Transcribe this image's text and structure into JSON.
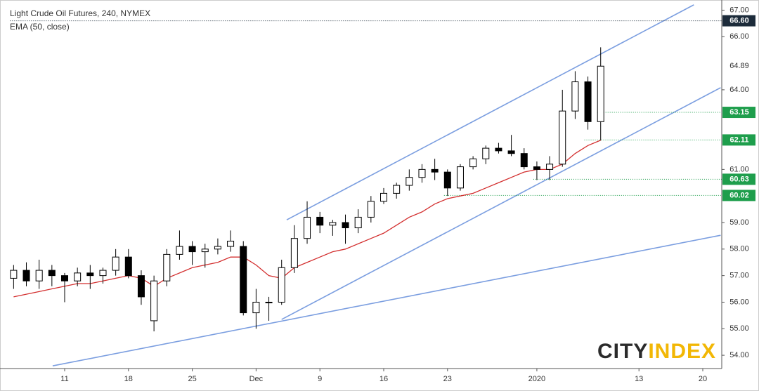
{
  "chart_data": {
    "type": "candlestick",
    "title": "Light Crude Oil Futures, 240, NYMEX",
    "subtitle": "EMA (50, close)",
    "watermark": [
      "CITY",
      "INDEX"
    ],
    "categories": [
      null,
      null,
      null,
      null,
      "11",
      null,
      null,
      null,
      null,
      "18",
      null,
      null,
      null,
      null,
      "25",
      null,
      null,
      null,
      null,
      "Dec",
      null,
      null,
      null,
      null,
      "9",
      null,
      null,
      null,
      null,
      "16",
      null,
      null,
      null,
      null,
      "23",
      null,
      null,
      null,
      null,
      null,
      null,
      "2020",
      null,
      null,
      null,
      null,
      null,
      null,
      null,
      "13",
      null,
      null,
      null,
      null,
      "20",
      null
    ],
    "open": [
      56.9,
      57.2,
      56.8,
      57.2,
      57.0,
      56.8,
      57.1,
      57.0,
      57.2,
      57.7,
      57.0,
      55.3,
      56.8,
      57.8,
      58.1,
      57.9,
      58.0,
      58.1,
      58.1,
      55.6,
      56.0,
      56.0,
      57.3,
      58.4,
      59.2,
      58.9,
      59.0,
      58.8,
      59.2,
      59.8,
      60.1,
      60.4,
      60.7,
      61.0,
      60.9,
      60.3,
      61.1,
      61.4,
      61.8,
      61.7,
      61.6,
      61.1,
      61.0,
      61.2,
      63.2,
      64.3,
      62.8,
      null,
      null,
      null,
      null,
      null,
      null,
      null,
      null,
      null
    ],
    "high": [
      57.4,
      57.5,
      57.6,
      57.4,
      57.1,
      57.3,
      57.4,
      57.3,
      58.0,
      58.0,
      57.2,
      57.0,
      58.0,
      58.7,
      58.3,
      58.2,
      58.4,
      58.7,
      58.3,
      56.5,
      56.2,
      57.6,
      58.9,
      59.8,
      59.4,
      59.1,
      59.3,
      59.5,
      60.0,
      60.3,
      60.5,
      61.0,
      61.2,
      61.4,
      61.0,
      61.2,
      61.5,
      61.9,
      62.0,
      62.3,
      61.8,
      61.3,
      61.5,
      64.0,
      64.7,
      64.5,
      65.6,
      null,
      null,
      null,
      null,
      null,
      null,
      null,
      null,
      null
    ],
    "low": [
      56.5,
      56.6,
      56.5,
      56.6,
      56.0,
      56.6,
      56.5,
      56.7,
      57.0,
      56.9,
      55.9,
      54.9,
      56.6,
      57.6,
      57.4,
      57.3,
      57.8,
      57.9,
      55.5,
      55.0,
      55.3,
      55.9,
      57.1,
      58.2,
      58.6,
      58.5,
      58.2,
      58.6,
      59.0,
      59.7,
      59.9,
      60.2,
      60.5,
      60.6,
      60.0,
      60.2,
      61.0,
      61.2,
      61.6,
      61.5,
      61.0,
      60.6,
      60.6,
      61.1,
      62.9,
      62.5,
      62.1,
      null,
      null,
      null,
      null,
      null,
      null,
      null,
      null,
      null
    ],
    "close": [
      57.2,
      56.8,
      57.2,
      57.0,
      56.8,
      57.1,
      57.0,
      57.2,
      57.7,
      57.0,
      56.2,
      56.8,
      57.8,
      58.1,
      57.9,
      58.0,
      58.1,
      58.3,
      55.6,
      56.0,
      56.0,
      57.3,
      58.4,
      59.2,
      58.9,
      59.0,
      58.8,
      59.2,
      59.8,
      60.1,
      60.4,
      60.7,
      61.0,
      60.9,
      60.3,
      61.1,
      61.4,
      61.8,
      61.7,
      61.6,
      61.1,
      61.0,
      61.2,
      63.2,
      64.3,
      62.8,
      64.89,
      null,
      null,
      null,
      null,
      null,
      null,
      null,
      null,
      null
    ],
    "ema": {
      "color": "#d32f2f",
      "values": [
        56.2,
        56.3,
        56.4,
        56.5,
        56.6,
        56.7,
        56.7,
        56.8,
        56.9,
        57.0,
        56.9,
        56.6,
        56.9,
        57.1,
        57.3,
        57.4,
        57.5,
        57.7,
        57.7,
        57.4,
        57.0,
        56.9,
        57.3,
        57.5,
        57.7,
        57.9,
        58.0,
        58.2,
        58.4,
        58.6,
        58.9,
        59.2,
        59.4,
        59.7,
        59.9,
        60.0,
        60.1,
        60.3,
        60.5,
        60.7,
        60.9,
        61.0,
        61.0,
        61.2,
        61.6,
        61.9,
        62.1,
        null,
        null,
        null,
        null,
        null,
        null,
        null,
        null,
        null
      ]
    },
    "up_color": "#ffffff",
    "down_color": "#000000",
    "ylim": [
      53.5,
      67.25
    ],
    "yticks": [
      {
        "value": 54,
        "label": "54.00"
      },
      {
        "value": 55,
        "label": "55.00"
      },
      {
        "value": 56,
        "label": "56.00"
      },
      {
        "value": 57,
        "label": "57.00"
      },
      {
        "value": 58,
        "label": "58.00"
      },
      {
        "value": 59,
        "label": "59.00"
      },
      {
        "value": 61,
        "label": "61.00"
      },
      {
        "value": 64,
        "label": "64.00"
      },
      {
        "value": 66,
        "label": "66.00"
      },
      {
        "value": 67,
        "label": "67.00"
      }
    ],
    "last_price": 64.89,
    "levels": [
      {
        "value": 66.6,
        "label": "66.60",
        "color": "#1c2b3a",
        "start": 0
      },
      {
        "value": 63.15,
        "color": "#1e9e4c",
        "start": 46
      },
      {
        "value": 62.11,
        "color": "#1e9e4c",
        "start": 45
      },
      {
        "value": 60.63,
        "color": "#1e9e4c",
        "start": 41
      },
      {
        "value": 60.02,
        "color": "#1e9e4c",
        "start": 34
      }
    ],
    "trendlines": [
      {
        "color": "#7b9ee0",
        "start": [
          21.4,
          59.1
        ],
        "end": [
          53.3,
          67.2
        ]
      },
      {
        "color": "#7b9ee0",
        "start": [
          21.0,
          55.35
        ],
        "end": [
          55.4,
          64.08
        ]
      },
      {
        "color": "#7b9ee0",
        "start": [
          3.06,
          53.6
        ],
        "end": [
          55.4,
          58.52
        ]
      }
    ]
  }
}
